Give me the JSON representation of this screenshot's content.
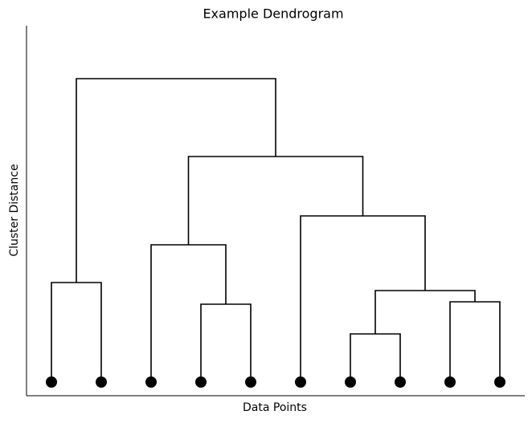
{
  "chart_data": {
    "type": "dendrogram",
    "title": "Example Dendrogram",
    "xlabel": "Data Points",
    "ylabel": "Cluster Distance",
    "color": "#000000",
    "ylim": [
      -1.7,
      44.4
    ],
    "merges": [
      {
        "left": 6,
        "right": 7,
        "height": 6.0
      },
      {
        "left": 3,
        "right": 4,
        "height": 9.7
      },
      {
        "left": 8,
        "right": 9,
        "height": 10.0
      },
      {
        "left": 10,
        "right": 12,
        "height": 11.4
      },
      {
        "left": 0,
        "right": 1,
        "height": 12.4
      },
      {
        "left": 2,
        "right": 11,
        "height": 17.1
      },
      {
        "left": 5,
        "right": 13,
        "height": 20.7
      },
      {
        "left": 15,
        "right": 16,
        "height": 28.1
      },
      {
        "left": 14,
        "right": 17,
        "height": 37.8
      }
    ]
  }
}
